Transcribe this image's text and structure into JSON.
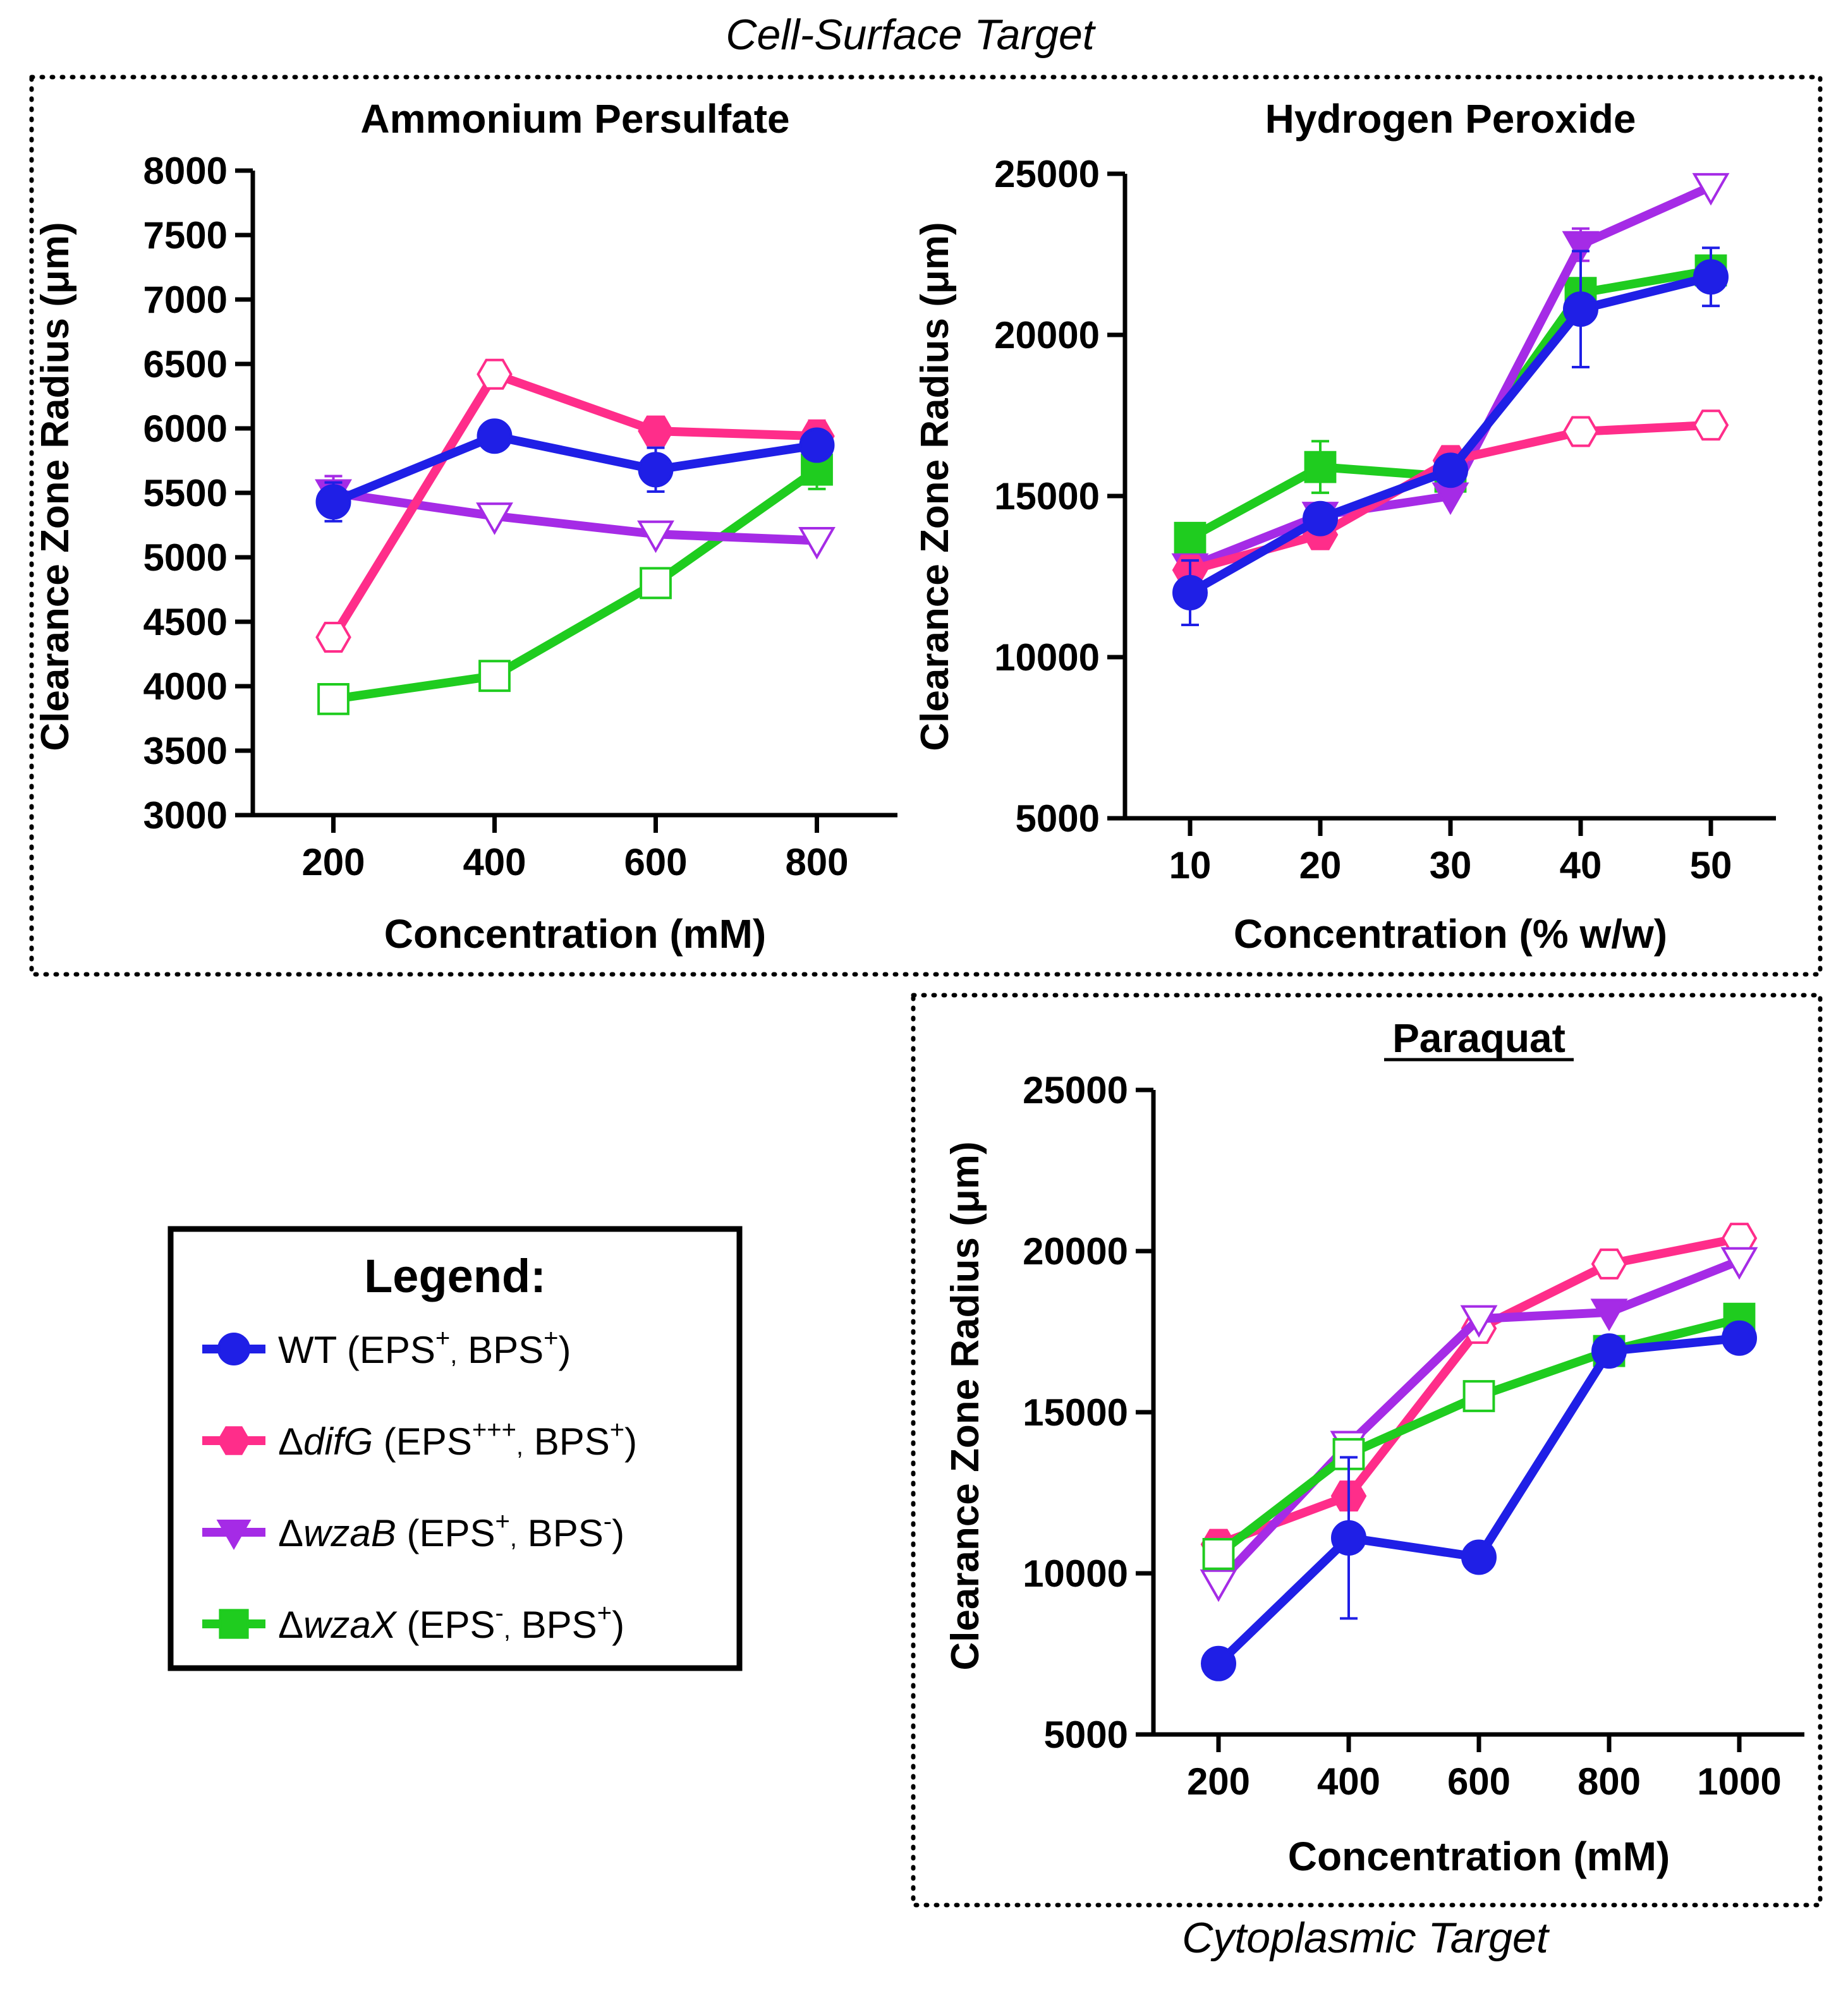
{
  "group_labels": {
    "top": "Cell-Surface Target",
    "bottom": "Cytoplasmic Target"
  },
  "legend": {
    "title": "Legend:",
    "entries": [
      {
        "series": "wt",
        "prefix": "",
        "italic": "",
        "name": "WT",
        "eps": "EPS",
        "eps_sup": "+",
        "sep": ",",
        "bps": "BPS",
        "bps_sup": "+"
      },
      {
        "series": "difg",
        "prefix": "Δ",
        "italic": "difG",
        "name": "",
        "eps": "EPS",
        "eps_sup": "+++",
        "sep": ",",
        "bps": "BPS",
        "bps_sup": "+"
      },
      {
        "series": "wzab",
        "prefix": "Δ",
        "italic": "wzaB",
        "name": "",
        "eps": "EPS",
        "eps_sup": "+",
        "sep": ",",
        "bps": "BPS",
        "bps_sup": "-"
      },
      {
        "series": "wzax",
        "prefix": "Δ",
        "italic": "wzaX",
        "name": "",
        "eps": "EPS",
        "eps_sup": "-",
        "sep": ",",
        "bps": "BPS",
        "bps_sup": "+"
      }
    ]
  },
  "series_styles": {
    "wt": {
      "color": "#1f1fe6",
      "marker": "circle"
    },
    "difg": {
      "color": "#ff2d8a",
      "marker": "hexagon"
    },
    "wzab": {
      "color": "#a52be6",
      "marker": "triangle-down"
    },
    "wzax": {
      "color": "#1fcc1f",
      "marker": "square"
    }
  },
  "chart_data": [
    {
      "id": "aps",
      "type": "line",
      "title": "Ammonium  Persulfate",
      "xlabel": "Concentration (mM)",
      "ylabel": "Clearance Zone Radius (μm)",
      "x": [
        200,
        400,
        600,
        800
      ],
      "xlim": [
        100,
        900
      ],
      "ylim": [
        3000,
        8000
      ],
      "yticks": [
        3000,
        3500,
        4000,
        4500,
        5000,
        5500,
        6000,
        6500,
        7000,
        7500,
        8000
      ],
      "series": [
        {
          "key": "wzax",
          "values": [
            3900,
            4080,
            4800,
            5680
          ],
          "filled": [
            false,
            false,
            false,
            true
          ],
          "errors": [
            0,
            0,
            0,
            150
          ]
        },
        {
          "key": "wzab",
          "values": [
            5500,
            5320,
            5180,
            5130
          ],
          "filled": [
            true,
            false,
            false,
            false
          ],
          "errors": [
            130,
            0,
            0,
            0
          ]
        },
        {
          "key": "difg",
          "values": [
            4380,
            6420,
            5980,
            5940
          ],
          "filled": [
            false,
            false,
            true,
            true
          ],
          "errors": [
            0,
            0,
            0,
            120
          ]
        },
        {
          "key": "wt",
          "values": [
            5430,
            5940,
            5680,
            5870
          ],
          "filled": [
            true,
            true,
            true,
            true
          ],
          "errors": [
            150,
            0,
            170,
            0
          ]
        }
      ]
    },
    {
      "id": "h2o2",
      "type": "line",
      "title": "Hydrogen  Peroxide",
      "xlabel": "Concentration (% w/w)",
      "ylabel": "Clearance Zone Radius (μm)",
      "x": [
        10,
        20,
        30,
        40,
        50
      ],
      "xlim": [
        5,
        55
      ],
      "ylim": [
        5000,
        25000
      ],
      "yticks": [
        5000,
        10000,
        15000,
        20000,
        25000
      ],
      "series": [
        {
          "key": "wzax",
          "values": [
            13700,
            15900,
            15600,
            21300,
            22000
          ],
          "filled": [
            true,
            true,
            true,
            true,
            true
          ],
          "errors": [
            0,
            800,
            0,
            0,
            0
          ]
        },
        {
          "key": "wzab",
          "values": [
            12800,
            14400,
            15000,
            22800,
            24600
          ],
          "filled": [
            true,
            true,
            true,
            true,
            false
          ],
          "errors": [
            0,
            0,
            0,
            500,
            0
          ]
        },
        {
          "key": "difg",
          "values": [
            12700,
            13800,
            16100,
            17000,
            17200
          ],
          "filled": [
            true,
            true,
            true,
            false,
            false
          ],
          "errors": [
            0,
            0,
            0,
            0,
            0
          ]
        },
        {
          "key": "wt",
          "values": [
            12000,
            14300,
            15800,
            20800,
            21800
          ],
          "filled": [
            true,
            true,
            true,
            true,
            true
          ],
          "errors": [
            1000,
            0,
            0,
            1800,
            900
          ]
        }
      ]
    },
    {
      "id": "paraquat",
      "type": "line",
      "title": "Paraquat",
      "xlabel": "Concentration (mM)",
      "ylabel": "Clearance Zone Radius (μm)",
      "x": [
        200,
        400,
        600,
        800,
        1000
      ],
      "xlim": [
        100,
        1100
      ],
      "ylim": [
        5000,
        25000
      ],
      "yticks": [
        5000,
        10000,
        15000,
        20000,
        25000
      ],
      "series": [
        {
          "key": "difg",
          "values": [
            10900,
            12400,
            17600,
            19600,
            20400
          ],
          "filled": [
            true,
            true,
            false,
            false,
            false
          ],
          "errors": [
            0,
            0,
            0,
            0,
            0
          ]
        },
        {
          "key": "wzab",
          "values": [
            9700,
            14000,
            17900,
            18100,
            19700
          ],
          "filled": [
            false,
            false,
            false,
            true,
            false
          ],
          "errors": [
            0,
            0,
            0,
            0,
            0
          ]
        },
        {
          "key": "wzax",
          "values": [
            10600,
            13700,
            15500,
            16900,
            17900
          ],
          "filled": [
            false,
            false,
            false,
            true,
            true
          ],
          "errors": [
            0,
            0,
            0,
            0,
            0
          ]
        },
        {
          "key": "wt",
          "values": [
            7200,
            11100,
            10500,
            16900,
            17300
          ],
          "filled": [
            true,
            true,
            true,
            true,
            true
          ],
          "errors": [
            0,
            2500,
            0,
            0,
            0
          ]
        }
      ]
    }
  ]
}
